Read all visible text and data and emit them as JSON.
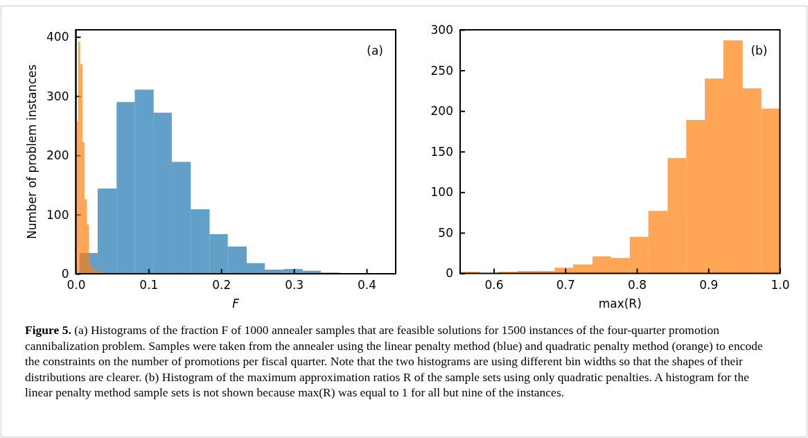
{
  "chart_data": [
    {
      "type": "histogram",
      "xlabel": "F",
      "ylabel": "Number of problem instances",
      "xlim": [
        0,
        0.44
      ],
      "ylim": [
        0,
        412
      ],
      "xticks": [
        {
          "value": 0,
          "label": "0.0"
        },
        0.1,
        0.2,
        0.3,
        0.4
      ],
      "yticks": [
        0,
        100,
        200,
        300,
        400
      ],
      "color": "#1f77b4",
      "bins": [
        0.005,
        0.03,
        0.056,
        0.081,
        0.107,
        0.132,
        0.158,
        0.184,
        0.209,
        0.235,
        0.26,
        0.286,
        0.312,
        0.337,
        0.363,
        0.414,
        0.44
      ],
      "values": [
        35,
        144,
        290,
        311,
        272,
        189,
        109,
        67,
        46,
        18,
        7,
        8,
        5,
        2,
        0,
        1
      ],
      "annotations": [
        "(a)",
        "Figure 5. (a) Histograms of the fraction F of 1000 annealer samples that are feasible solutions for 1500 instances of the four-quarter promotion cannibalization problem. Samples were taken from the annealer using the linear penalty method (blue) and quadratic penalty method (orange) to encode the constraints on the number of promotions per fiscal quarter. Note that the two histograms are using different bin widths so that the shapes of their distributions are clearer. (b) Histogram of the maximum approximation ratios R of the sample sets using only quadratic penalties. A histogram for the linear penalty method sample sets is not shown because max(R) was equal to 1 for all but nine of the instances."
      ]
    },
    {
      "type": "histogram",
      "xlim": [
        0,
        0.44
      ],
      "ylim": [
        0,
        412
      ],
      "tick_labels": false,
      "color": "#ff7f0e",
      "bins": [
        0,
        0.003,
        0.006,
        0.009,
        0.012,
        0.015,
        0.018,
        0.021,
        0.024,
        0.027,
        0.03,
        0.033,
        0.036,
        0.039,
        0.042,
        0.045,
        0.048,
        0.051,
        0.054
      ],
      "values": [
        258,
        392,
        354,
        222,
        126,
        83,
        20,
        10,
        7,
        6,
        4,
        3,
        2,
        2,
        1,
        1,
        1,
        1
      ]
    },
    {
      "type": "histogram",
      "xlabel": "max(R)",
      "xlim": [
        0.553,
        1.0
      ],
      "ylim": [
        0,
        300
      ],
      "xticks": [
        0.6,
        0.7,
        0.8,
        0.9,
        {
          "value": 1.0,
          "label": "1.0"
        }
      ],
      "yticks": [
        0,
        50,
        100,
        150,
        200,
        250,
        300
      ],
      "color": "#ff7f0e",
      "bins": [
        0.554,
        0.58,
        0.606,
        0.633,
        0.659,
        0.685,
        0.711,
        0.738,
        0.764,
        0.79,
        0.816,
        0.843,
        0.869,
        0.895,
        0.921,
        0.948,
        0.974,
        1.0
      ],
      "values": [
        2,
        0,
        2,
        3,
        3,
        7,
        11,
        21,
        19,
        45,
        77,
        142,
        189,
        240,
        287,
        228,
        203
      ],
      "annotations": [
        "(b)"
      ]
    }
  ]
}
